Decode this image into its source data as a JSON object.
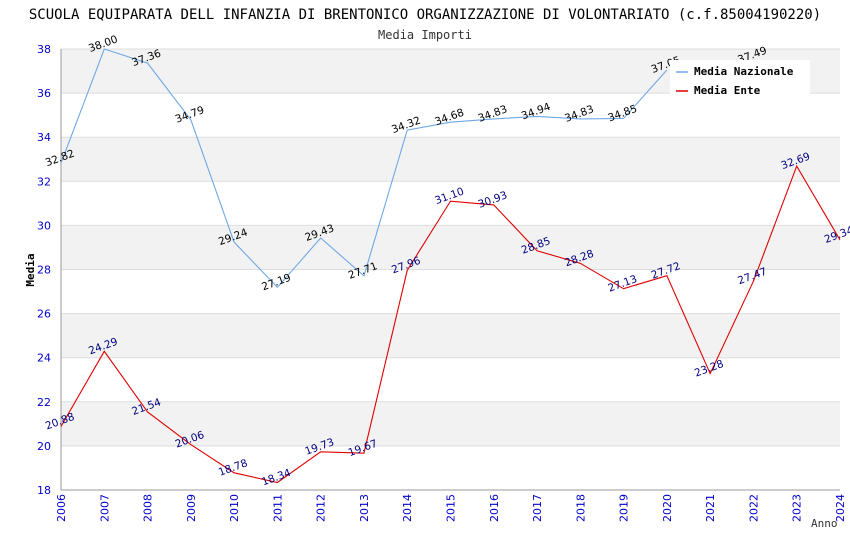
{
  "chart_data": {
    "type": "line",
    "title": "SCUOLA EQUIPARATA DELL INFANZIA DI BRENTONICO ORGANIZZAZIONE DI VOLONTARIATO (c.f.85004190220)",
    "subtitle": "Media Importi",
    "xlabel": "Anno",
    "ylabel": "Media",
    "ylim": [
      18,
      38
    ],
    "yticks": [
      18,
      20,
      22,
      24,
      26,
      28,
      30,
      32,
      34,
      36,
      38
    ],
    "categories": [
      "2006",
      "2007",
      "2008",
      "2009",
      "2010",
      "2011",
      "2012",
      "2013",
      "2014",
      "2015",
      "2016",
      "2017",
      "2018",
      "2019",
      "2020",
      "2021",
      "2022",
      "2023",
      "2024"
    ],
    "series": [
      {
        "name": "Media Nazionale",
        "color": "#6fa8e6",
        "values": [
          32.82,
          38.0,
          37.36,
          34.79,
          29.24,
          27.19,
          29.43,
          27.71,
          34.32,
          34.68,
          34.83,
          34.94,
          34.83,
          34.85,
          37.05,
          null,
          37.49,
          null,
          null
        ],
        "labels": [
          "32.82",
          "38.00",
          "37.36",
          "34.79",
          "29.24",
          "27.19",
          "29.43",
          "27.71",
          "34.32",
          "34.68",
          "34.83",
          "34.94",
          "34.83",
          "34.85",
          "37.05",
          "",
          "37.49",
          "",
          ""
        ]
      },
      {
        "name": "Media Ente",
        "color": "#e00000",
        "values": [
          20.88,
          24.29,
          21.54,
          20.06,
          18.78,
          18.34,
          19.73,
          19.67,
          27.96,
          31.1,
          30.93,
          28.85,
          28.28,
          27.13,
          27.72,
          23.28,
          27.47,
          32.69,
          29.34
        ],
        "labels": [
          "20.88",
          "24.29",
          "21.54",
          "20.06",
          "18.78",
          "18.34",
          "19.73",
          "19.67",
          "27.96",
          "31.10",
          "30.93",
          "28.85",
          "28.28",
          "27.13",
          "27.72",
          "23.28",
          "27.47",
          "32.69",
          "29.34"
        ]
      }
    ],
    "legend": "top-right",
    "grid": true
  }
}
